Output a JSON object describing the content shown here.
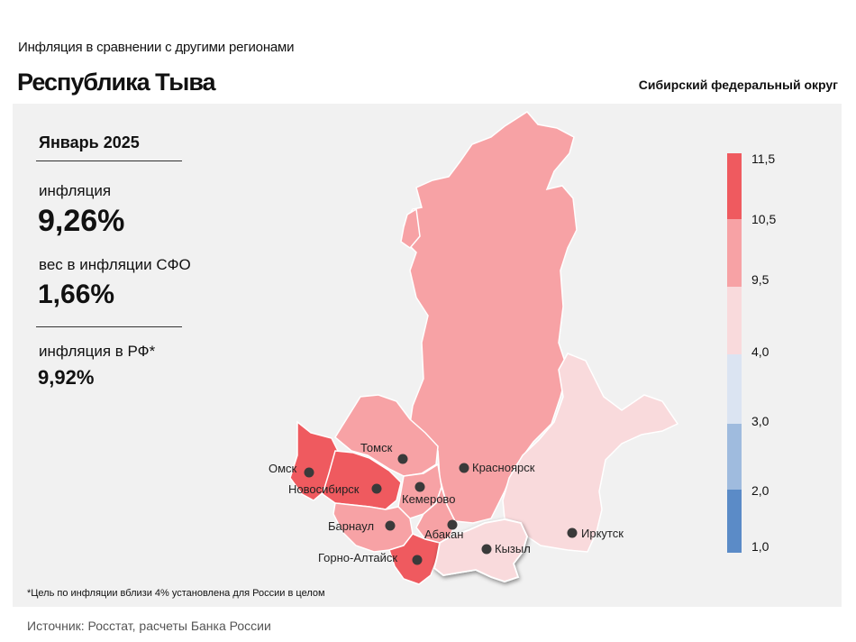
{
  "header": {
    "subtitle": "Инфляция в сравнении с другими регионами",
    "title": "Республика Тыва",
    "district": "Сибирский федеральный округ"
  },
  "stats": {
    "period": "Январь 2025",
    "inflation_label": "инфляция",
    "inflation_value": "9,26%",
    "weight_label": "вес в инфляции СФО",
    "weight_value": "1,66%",
    "rf_label": "инфляция в РФ*",
    "rf_value": "9,92%"
  },
  "map": {
    "cities": [
      {
        "name": "Томск"
      },
      {
        "name": "Омск"
      },
      {
        "name": "Новосибирск"
      },
      {
        "name": "Кемерово"
      },
      {
        "name": "Красноярск"
      },
      {
        "name": "Барнаул"
      },
      {
        "name": "Абакан"
      },
      {
        "name": "Горно-Алтайск"
      },
      {
        "name": "Кызыл"
      },
      {
        "name": "Иркутск"
      }
    ],
    "colors": {
      "high": "#ef5a5f",
      "mid_high": "#f7a2a5",
      "mid": "#f9dadc",
      "low": "#dbe4f2",
      "lower": "#9fbbde",
      "lowest": "#5b8bc7"
    }
  },
  "legend": {
    "ticks": [
      "11,5",
      "10,5",
      "9,5",
      "4,0",
      "3,0",
      "2,0",
      "1,0"
    ]
  },
  "footer": {
    "footnote": "*Цель по инфляции вблизи 4% установлена для России в целом",
    "source": "Источник: Росстат, расчеты Банка России"
  }
}
